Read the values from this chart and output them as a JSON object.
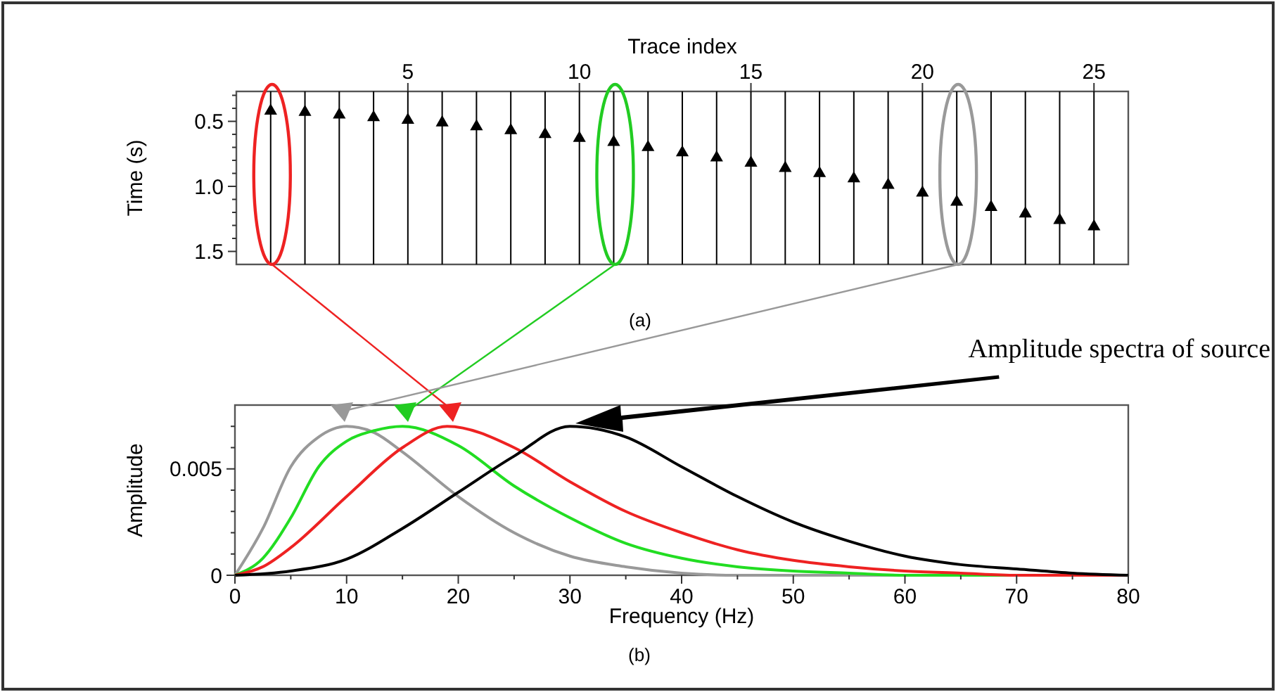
{
  "chart_data": [
    {
      "type": "scatter",
      "xlabel": "Trace index",
      "ylabel": "Time (s)",
      "annotations": [
        "(a)"
      ],
      "marker": "triangle",
      "xlim": [
        0,
        26
      ],
      "ylim": [
        1.6,
        0.27
      ],
      "xticks": [
        5,
        10,
        15,
        20,
        25
      ],
      "yticks": [
        {
          "value": 0.3,
          "label": null
        },
        {
          "value": 0.4,
          "label": null
        },
        0.5,
        {
          "value": 0.6,
          "label": null
        },
        {
          "value": 0.7,
          "label": null
        },
        {
          "value": 0.8,
          "label": null
        },
        {
          "value": 0.9,
          "label": null
        },
        {
          "value": 1.0,
          "label": "1.0"
        },
        {
          "value": 1.1,
          "label": null
        },
        {
          "value": 1.2,
          "label": null
        },
        {
          "value": 1.3,
          "label": null
        },
        {
          "value": 1.4,
          "label": null
        },
        1.5
      ],
      "grid": false,
      "ref_lines": [
        {
          "axis": "x",
          "value": 1,
          "color": "#000000"
        },
        {
          "axis": "x",
          "value": 2,
          "color": "#000000"
        },
        {
          "axis": "x",
          "value": 3,
          "color": "#000000"
        },
        {
          "axis": "x",
          "value": 4,
          "color": "#000000"
        },
        {
          "axis": "x",
          "value": 5,
          "color": "#000000"
        },
        {
          "axis": "x",
          "value": 6,
          "color": "#000000"
        },
        {
          "axis": "x",
          "value": 7,
          "color": "#000000"
        },
        {
          "axis": "x",
          "value": 8,
          "color": "#000000"
        },
        {
          "axis": "x",
          "value": 9,
          "color": "#000000"
        },
        {
          "axis": "x",
          "value": 10,
          "color": "#000000"
        },
        {
          "axis": "x",
          "value": 11,
          "color": "#000000"
        },
        {
          "axis": "x",
          "value": 12,
          "color": "#000000"
        },
        {
          "axis": "x",
          "value": 13,
          "color": "#000000"
        },
        {
          "axis": "x",
          "value": 14,
          "color": "#000000"
        },
        {
          "axis": "x",
          "value": 15,
          "color": "#000000"
        },
        {
          "axis": "x",
          "value": 16,
          "color": "#000000"
        },
        {
          "axis": "x",
          "value": 17,
          "color": "#000000"
        },
        {
          "axis": "x",
          "value": 18,
          "color": "#000000"
        },
        {
          "axis": "x",
          "value": 19,
          "color": "#000000"
        },
        {
          "axis": "x",
          "value": 20,
          "color": "#000000"
        },
        {
          "axis": "x",
          "value": 21,
          "color": "#000000"
        },
        {
          "axis": "x",
          "value": 22,
          "color": "#000000"
        },
        {
          "axis": "x",
          "value": 23,
          "color": "#000000"
        },
        {
          "axis": "x",
          "value": 24,
          "color": "#000000"
        },
        {
          "axis": "x",
          "value": 25,
          "color": "#000000"
        }
      ],
      "x": [
        1,
        2,
        3,
        4,
        5,
        6,
        7,
        8,
        9,
        10,
        11,
        12,
        13,
        14,
        15,
        16,
        17,
        18,
        19,
        20,
        21,
        22,
        23,
        24,
        25
      ],
      "series": [
        {
          "color": "#000000",
          "values": [
            0.42,
            0.43,
            0.45,
            0.47,
            0.49,
            0.51,
            0.54,
            0.57,
            0.6,
            0.63,
            0.66,
            0.7,
            0.74,
            0.78,
            0.82,
            0.86,
            0.9,
            0.94,
            0.99,
            1.05,
            1.12,
            1.16,
            1.21,
            1.26,
            1.31
          ]
        }
      ]
    },
    {
      "type": "line",
      "xlabel": "Frequency (Hz)",
      "ylabel": "Amplitude",
      "annotations": [
        "(b)",
        "Amplitude spectra of source"
      ],
      "xlim": [
        0,
        80
      ],
      "ylim": [
        0,
        0.008
      ],
      "xticks": [
        0,
        {
          "value": 5,
          "label": null
        },
        10,
        {
          "value": 15,
          "label": null
        },
        20,
        {
          "value": 25,
          "label": null
        },
        30,
        {
          "value": 35,
          "label": null
        },
        40,
        {
          "value": 45,
          "label": null
        },
        50,
        {
          "value": 55,
          "label": null
        },
        60,
        {
          "value": 65,
          "label": null
        },
        70,
        {
          "value": 75,
          "label": null
        },
        80
      ],
      "yticks": [
        0,
        {
          "value": 0.001,
          "label": null
        },
        {
          "value": 0.002,
          "label": null
        },
        {
          "value": 0.003,
          "label": null
        },
        {
          "value": 0.004,
          "label": null
        },
        0.005,
        {
          "value": 0.006,
          "label": null
        },
        {
          "value": 0.007,
          "label": null
        }
      ],
      "grid": false,
      "line_style": "solid",
      "series": [
        {
          "color": "#999999",
          "x": [
            0,
            2.5,
            5,
            7.5,
            10,
            12.5,
            15,
            20,
            25,
            30,
            35,
            40,
            45,
            50,
            60,
            70,
            80
          ],
          "values": [
            0,
            0.0022,
            0.0051,
            0.0065,
            0.007,
            0.0067,
            0.0058,
            0.0037,
            0.002,
            0.0009,
            0.0004,
            0.0001,
            0,
            0,
            0,
            0,
            0
          ]
        },
        {
          "color": "#22dd22",
          "x": [
            0,
            2.5,
            5,
            7.5,
            10,
            12.5,
            15,
            20,
            25,
            30,
            35,
            40,
            45,
            50,
            55,
            60,
            70,
            80
          ],
          "values": [
            0,
            0.0008,
            0.0027,
            0.0051,
            0.0063,
            0.0068,
            0.007,
            0.0061,
            0.0042,
            0.0027,
            0.0015,
            0.0008,
            0.0004,
            0.0002,
            0.0001,
            0,
            0,
            0
          ]
        },
        {
          "color": "#ee2222",
          "x": [
            0,
            2.5,
            5,
            10,
            15,
            19,
            25,
            30,
            35,
            40,
            45,
            50,
            55,
            60,
            65,
            70,
            80
          ],
          "values": [
            0,
            0.0004,
            0.0013,
            0.0037,
            0.006,
            0.007,
            0.006,
            0.0044,
            0.003,
            0.002,
            0.0012,
            0.0007,
            0.0004,
            0.0002,
            0.0001,
            0,
            0
          ]
        },
        {
          "color": "#000000",
          "x": [
            0,
            5,
            10,
            15,
            20,
            25,
            30,
            35,
            40,
            45,
            50,
            55,
            60,
            65,
            70,
            75,
            80
          ],
          "values": [
            0,
            0.0002,
            0.00076,
            0.0022,
            0.0039,
            0.0056,
            0.007,
            0.0065,
            0.0051,
            0.0037,
            0.0025,
            0.0016,
            0.0009,
            0.0005,
            0.0003,
            0.0001,
            0
          ]
        }
      ]
    }
  ]
}
